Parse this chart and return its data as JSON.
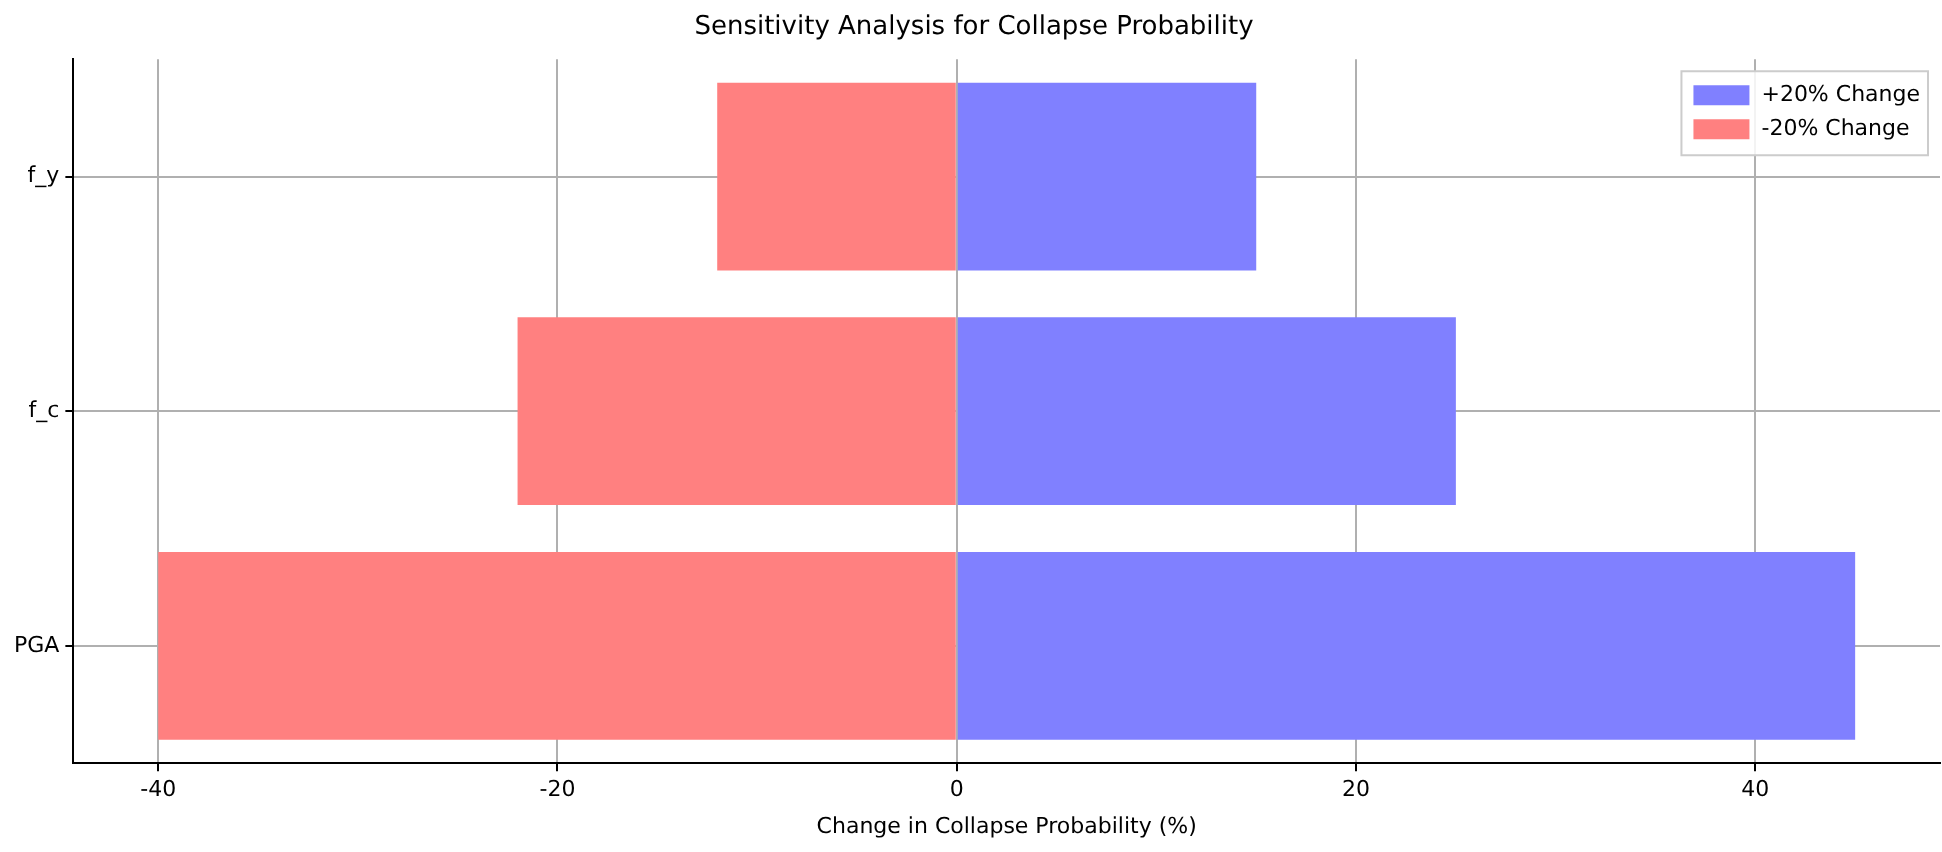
{
  "chart_data": {
    "type": "bar",
    "orientation": "horizontal",
    "stacked": true,
    "title": "Sensitivity Analysis for Collapse Probability",
    "xlabel": "Change in Collapse Probability (%)",
    "categories": [
      "f_y",
      "f_c",
      "PGA"
    ],
    "series": [
      {
        "name": "+20% Change",
        "color": "#8080ff",
        "values": [
          15,
          25,
          45
        ]
      },
      {
        "name": "-20% Change",
        "color": "#ff8080",
        "values": [
          -12,
          -22,
          -40
        ]
      }
    ],
    "xlim": [
      -44.25,
      49.25
    ],
    "xticks": [
      -40,
      -20,
      0,
      20,
      40
    ],
    "grid": true,
    "legend": "top right"
  }
}
